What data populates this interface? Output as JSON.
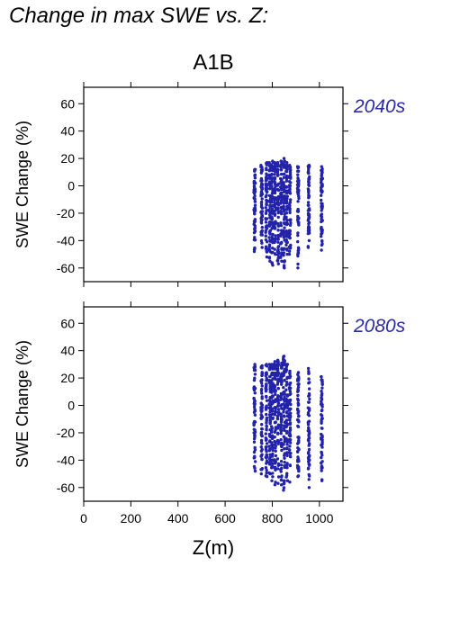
{
  "figure_title": "Change in max SWE vs. Z:",
  "scenario": "A1B",
  "colors": {
    "points": "#2222aa",
    "period_label": "#2a2aaa",
    "axis": "#000000"
  },
  "chart_data": [
    {
      "type": "scatter",
      "period": "2040s",
      "ylabel": "SWE Change (%)",
      "xlabel": "",
      "xlim": [
        0,
        1100
      ],
      "ylim": [
        -70,
        72
      ],
      "xticks": [
        0,
        200,
        400,
        600,
        800,
        1000
      ],
      "yticks": [
        -60,
        -40,
        -20,
        0,
        20,
        40,
        60
      ],
      "show_x_tick_labels": false,
      "grid": false,
      "columns": [
        {
          "x": 725,
          "ymin": -48,
          "ymax": 12
        },
        {
          "x": 755,
          "ymin": -45,
          "ymax": 15
        },
        {
          "x": 775,
          "ymin": -52,
          "ymax": 17
        },
        {
          "x": 790,
          "ymin": -55,
          "ymax": 17
        },
        {
          "x": 800,
          "ymin": -58,
          "ymax": 18
        },
        {
          "x": 812,
          "ymin": -50,
          "ymax": 17
        },
        {
          "x": 825,
          "ymin": -57,
          "ymax": 17
        },
        {
          "x": 838,
          "ymin": -55,
          "ymax": 18
        },
        {
          "x": 850,
          "ymin": -60,
          "ymax": 20
        },
        {
          "x": 862,
          "ymin": -50,
          "ymax": 17
        },
        {
          "x": 875,
          "ymin": -50,
          "ymax": 15
        },
        {
          "x": 910,
          "ymin": -60,
          "ymax": 14
        },
        {
          "x": 955,
          "ymin": -45,
          "ymax": 15
        },
        {
          "x": 1010,
          "ymin": -47,
          "ymax": 14
        }
      ]
    },
    {
      "type": "scatter",
      "period": "2080s",
      "ylabel": "SWE Change (%)",
      "xlabel": "Z(m)",
      "xlim": [
        0,
        1100
      ],
      "ylim": [
        -70,
        72
      ],
      "xticks": [
        0,
        200,
        400,
        600,
        800,
        1000
      ],
      "yticks": [
        -60,
        -40,
        -20,
        0,
        20,
        40,
        60
      ],
      "show_x_tick_labels": true,
      "grid": false,
      "columns": [
        {
          "x": 725,
          "ymin": -48,
          "ymax": 30
        },
        {
          "x": 755,
          "ymin": -50,
          "ymax": 29
        },
        {
          "x": 775,
          "ymin": -52,
          "ymax": 30
        },
        {
          "x": 790,
          "ymin": -50,
          "ymax": 30
        },
        {
          "x": 800,
          "ymin": -55,
          "ymax": 30
        },
        {
          "x": 812,
          "ymin": -58,
          "ymax": 32
        },
        {
          "x": 825,
          "ymin": -57,
          "ymax": 33
        },
        {
          "x": 838,
          "ymin": -58,
          "ymax": 31
        },
        {
          "x": 850,
          "ymin": -62,
          "ymax": 36
        },
        {
          "x": 862,
          "ymin": -55,
          "ymax": 30
        },
        {
          "x": 875,
          "ymin": -56,
          "ymax": 25
        },
        {
          "x": 910,
          "ymin": -52,
          "ymax": 24
        },
        {
          "x": 955,
          "ymin": -60,
          "ymax": 27
        },
        {
          "x": 1010,
          "ymin": -55,
          "ymax": 21
        }
      ]
    }
  ]
}
